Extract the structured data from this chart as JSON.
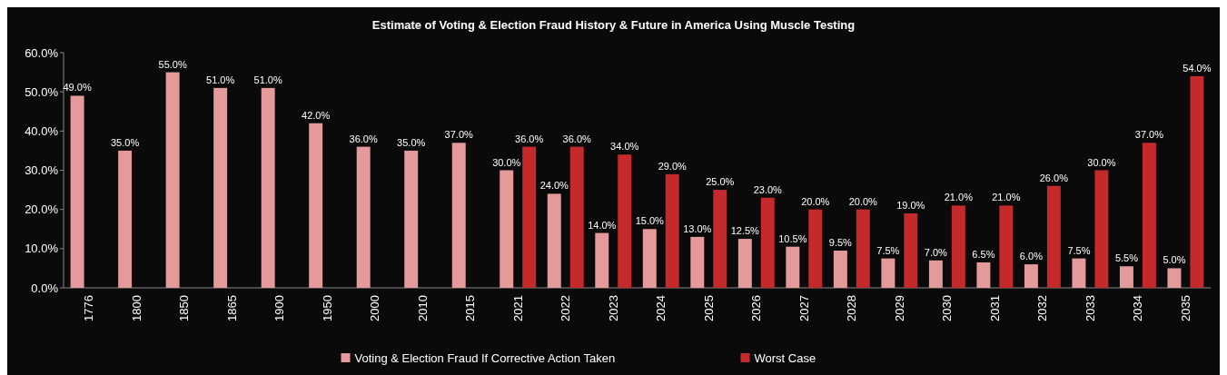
{
  "chart_data": {
    "type": "bar",
    "title": "Estimate of Voting & Election Fraud History & Future in America  Using Muscle Testing",
    "categories": [
      "1776",
      "1800",
      "1850",
      "1865",
      "1900",
      "1950",
      "2000",
      "2010",
      "2015",
      "2021",
      "2022",
      "2023",
      "2024",
      "2025",
      "2026",
      "2027",
      "2028",
      "2029",
      "2030",
      "2031",
      "2032",
      "2033",
      "2034",
      "2035"
    ],
    "series": [
      {
        "name": "Voting & Election Fraud If Corrective Action Taken",
        "color": "#e49a9a",
        "values": [
          49,
          35,
          55,
          51,
          51,
          42,
          36,
          35,
          37,
          30,
          24,
          14,
          15,
          13,
          12.5,
          10.5,
          9.5,
          7.5,
          7,
          6.5,
          6,
          7.5,
          5.5,
          5
        ],
        "value_labels": [
          "49.0%",
          "35.0%",
          "55.0%",
          "51.0%",
          "51.0%",
          "42.0%",
          "36.0%",
          "35.0%",
          "37.0%",
          "30.0%",
          "24.0%",
          "14.0%",
          "15.0%",
          "13.0%",
          "12.5%",
          "10.5%",
          "9.5%",
          "7.5%",
          "7.0%",
          "6.5%",
          "6.0%",
          "7.5%",
          "5.5%",
          "5.0%"
        ]
      },
      {
        "name": "Worst Case",
        "color": "#c42a2c",
        "values": [
          null,
          null,
          null,
          null,
          null,
          null,
          null,
          null,
          null,
          36,
          36,
          34,
          29,
          25,
          23,
          20,
          20,
          19,
          21,
          21,
          26,
          30,
          37,
          54
        ],
        "value_labels": [
          null,
          null,
          null,
          null,
          null,
          null,
          null,
          null,
          null,
          "36.0%",
          "36.0%",
          "34.0%",
          "29.0%",
          "25.0%",
          "23.0%",
          "20.0%",
          "20.0%",
          "19.0%",
          "21.0%",
          "21.0%",
          "26.0%",
          "30.0%",
          "37.0%",
          "54.0%"
        ]
      }
    ],
    "ylim": [
      0,
      60
    ],
    "yticks": [
      {
        "value": 0,
        "label": "0.0%"
      },
      {
        "value": 10,
        "label": "10.0%"
      },
      {
        "value": 20,
        "label": "20.0%"
      },
      {
        "value": 30,
        "label": "30.0%"
      },
      {
        "value": 40,
        "label": "40.0%"
      },
      {
        "value": 50,
        "label": "50.0%"
      },
      {
        "value": 60,
        "label": "60.0%"
      }
    ],
    "legend": "bottom"
  }
}
